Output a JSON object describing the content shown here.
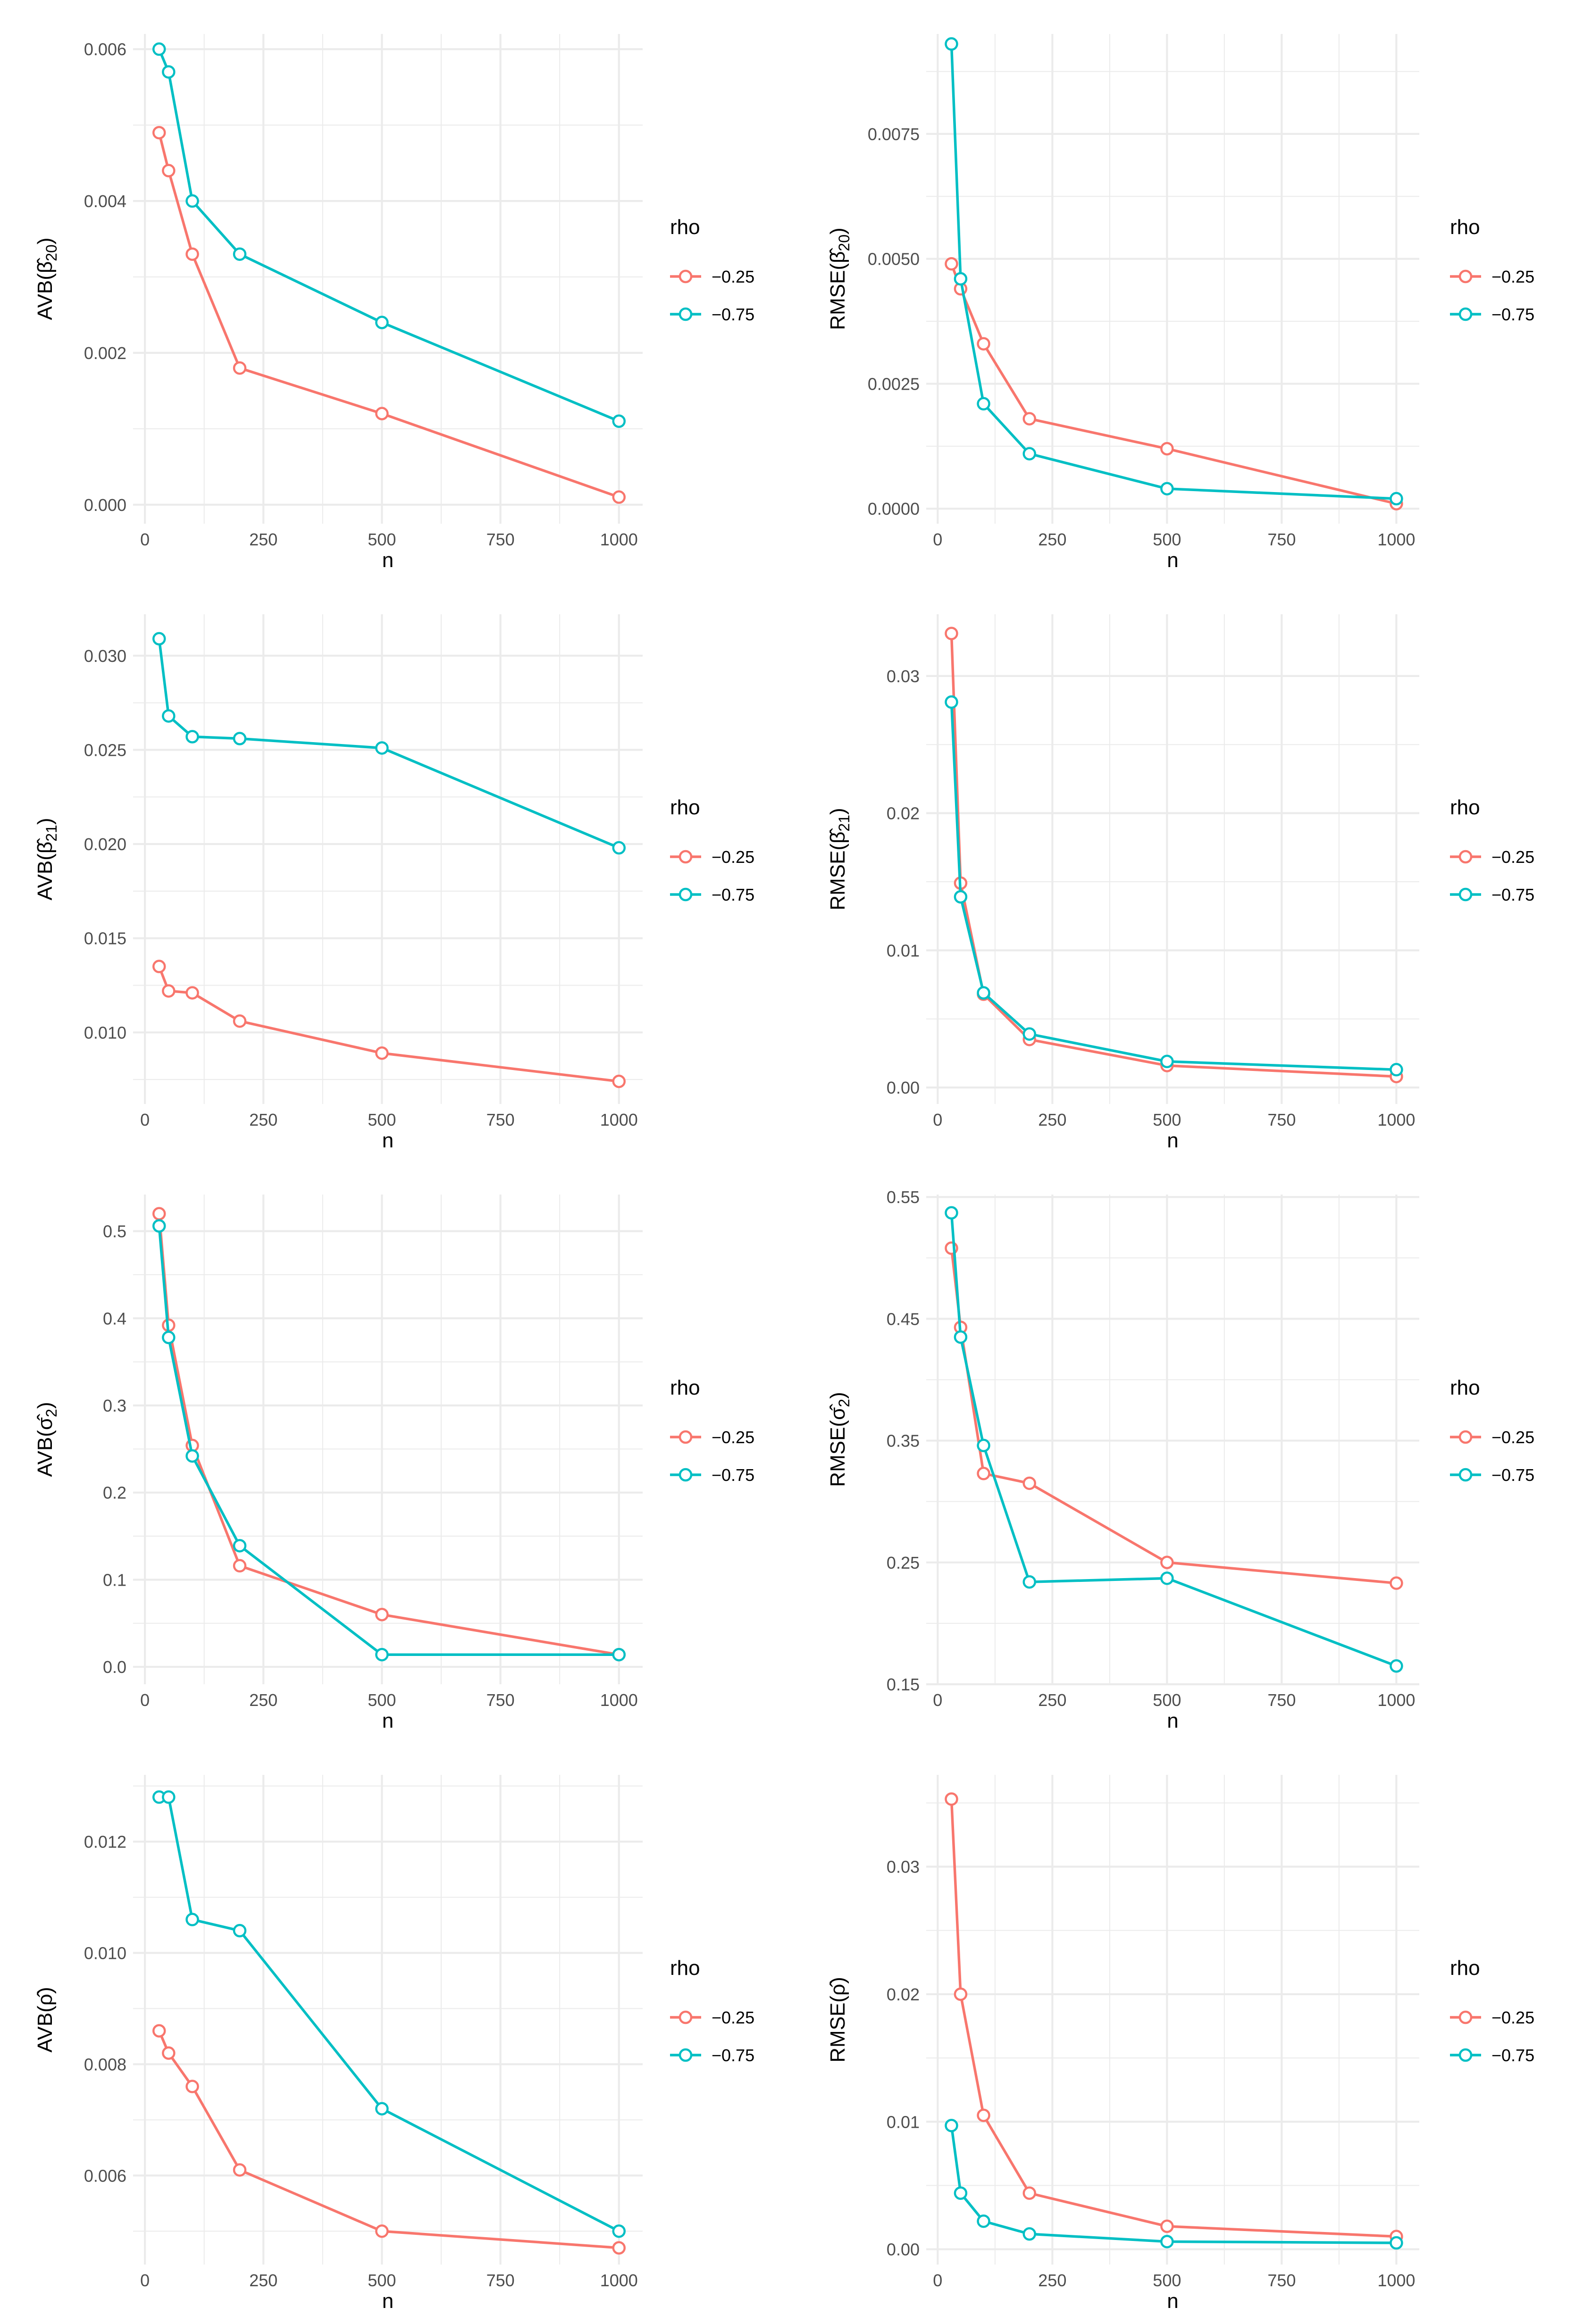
{
  "figure": {
    "legend_title": "rho",
    "colors": {
      "-0.25": "#F8766D",
      "-0.75": "#00BFC4"
    }
  },
  "chart_data": [
    {
      "id": "avb-beta20",
      "type": "line",
      "title": "",
      "xlabel": "n",
      "ylabel": "AVB(β̂20)",
      "ylabel_main": "AVB(",
      "ylabel_sym": "β̂",
      "ylabel_sub": "20",
      "ylabel_close": ")",
      "xlim": [
        -25,
        1050
      ],
      "ylim": [
        -0.00025,
        0.0062
      ],
      "xticks": [
        0,
        250,
        500,
        750,
        1000
      ],
      "xtick_labels": [
        "0",
        "250",
        "500",
        "750",
        "1000"
      ],
      "yticks": [
        0,
        0.002,
        0.004,
        0.006
      ],
      "ytick_labels": [
        "0.000",
        "0.002",
        "0.004",
        "0.006"
      ],
      "legend": {
        "title": "rho",
        "entries": [
          "−0.25",
          "−0.75"
        ]
      },
      "series": [
        {
          "name": "-0.25",
          "x": [
            30,
            50,
            100,
            200,
            500,
            1000
          ],
          "y": [
            0.0049,
            0.0044,
            0.0033,
            0.0018,
            0.0012,
            0.0001
          ]
        },
        {
          "name": "-0.75",
          "x": [
            30,
            50,
            100,
            200,
            500,
            1000
          ],
          "y": [
            0.006,
            0.0057,
            0.004,
            0.0033,
            0.0024,
            0.0011
          ]
        }
      ]
    },
    {
      "id": "rmse-beta20",
      "type": "line",
      "title": "",
      "xlabel": "n",
      "ylabel": "RMSE(β̂20)",
      "ylabel_main": "RMSE(",
      "ylabel_sym": "β̂",
      "ylabel_sub": "20",
      "ylabel_close": ")",
      "xlim": [
        -25,
        1050
      ],
      "ylim": [
        -0.0003,
        0.0095
      ],
      "xticks": [
        0,
        250,
        500,
        750,
        1000
      ],
      "xtick_labels": [
        "0",
        "250",
        "500",
        "750",
        "1000"
      ],
      "yticks": [
        0,
        0.0025,
        0.005,
        0.0075
      ],
      "ytick_labels": [
        "0.0000",
        "0.0025",
        "0.0050",
        "0.0075"
      ],
      "legend": {
        "title": "rho",
        "entries": [
          "−0.25",
          "−0.75"
        ]
      },
      "series": [
        {
          "name": "-0.25",
          "x": [
            30,
            50,
            100,
            200,
            500,
            1000
          ],
          "y": [
            0.0049,
            0.0044,
            0.0033,
            0.0018,
            0.0012,
            0.0001
          ]
        },
        {
          "name": "-0.75",
          "x": [
            30,
            50,
            100,
            200,
            500,
            1000
          ],
          "y": [
            0.0093,
            0.0046,
            0.0021,
            0.0011,
            0.0004,
            0.0002
          ]
        }
      ]
    },
    {
      "id": "avb-beta21",
      "type": "line",
      "title": "",
      "xlabel": "n",
      "ylabel": "AVB(β̂21)",
      "ylabel_main": "AVB(",
      "ylabel_sym": "β̂",
      "ylabel_sub": "21",
      "ylabel_close": ")",
      "xlim": [
        -25,
        1050
      ],
      "ylim": [
        0.0062,
        0.0322
      ],
      "xticks": [
        0,
        250,
        500,
        750,
        1000
      ],
      "xtick_labels": [
        "0",
        "250",
        "500",
        "750",
        "1000"
      ],
      "yticks": [
        0.01,
        0.015,
        0.02,
        0.025,
        0.03
      ],
      "ytick_labels": [
        "0.010",
        "0.015",
        "0.020",
        "0.025",
        "0.030"
      ],
      "legend": {
        "title": "rho",
        "entries": [
          "−0.25",
          "−0.75"
        ]
      },
      "series": [
        {
          "name": "-0.25",
          "x": [
            30,
            50,
            100,
            200,
            500,
            1000
          ],
          "y": [
            0.0135,
            0.0122,
            0.0121,
            0.0106,
            0.0089,
            0.0074
          ]
        },
        {
          "name": "-0.75",
          "x": [
            30,
            50,
            100,
            200,
            500,
            1000
          ],
          "y": [
            0.0309,
            0.0268,
            0.0257,
            0.0256,
            0.0251,
            0.0198
          ]
        }
      ]
    },
    {
      "id": "rmse-beta21",
      "type": "line",
      "title": "",
      "xlabel": "n",
      "ylabel": "RMSE(β̂21)",
      "ylabel_main": "RMSE(",
      "ylabel_sym": "β̂",
      "ylabel_sub": "21",
      "ylabel_close": ")",
      "xlim": [
        -25,
        1050
      ],
      "ylim": [
        -0.0012,
        0.0345
      ],
      "xticks": [
        0,
        250,
        500,
        750,
        1000
      ],
      "xtick_labels": [
        "0",
        "250",
        "500",
        "750",
        "1000"
      ],
      "yticks": [
        0,
        0.01,
        0.02,
        0.03
      ],
      "ytick_labels": [
        "0.00",
        "0.01",
        "0.02",
        "0.03"
      ],
      "legend": {
        "title": "rho",
        "entries": [
          "−0.25",
          "−0.75"
        ]
      },
      "series": [
        {
          "name": "-0.25",
          "x": [
            30,
            50,
            100,
            200,
            500,
            1000
          ],
          "y": [
            0.0331,
            0.0149,
            0.0068,
            0.0035,
            0.0016,
            0.0008
          ]
        },
        {
          "name": "-0.75",
          "x": [
            30,
            50,
            100,
            200,
            500,
            1000
          ],
          "y": [
            0.0281,
            0.0139,
            0.0069,
            0.0039,
            0.0019,
            0.0013
          ]
        }
      ]
    },
    {
      "id": "avb-sigma2",
      "type": "line",
      "title": "",
      "xlabel": "n",
      "ylabel": "AVB(σ̂2)",
      "ylabel_main": "AVB(",
      "ylabel_sym": "σ̂",
      "ylabel_sub": "2",
      "ylabel_close": ")",
      "xlim": [
        -25,
        1050
      ],
      "ylim": [
        -0.02,
        0.542
      ],
      "xticks": [
        0,
        250,
        500,
        750,
        1000
      ],
      "xtick_labels": [
        "0",
        "250",
        "500",
        "750",
        "1000"
      ],
      "yticks": [
        0,
        0.1,
        0.2,
        0.3,
        0.4,
        0.5
      ],
      "ytick_labels": [
        "0.0",
        "0.1",
        "0.2",
        "0.3",
        "0.4",
        "0.5"
      ],
      "legend": {
        "title": "rho",
        "entries": [
          "−0.25",
          "−0.75"
        ]
      },
      "series": [
        {
          "name": "-0.25",
          "x": [
            30,
            50,
            100,
            200,
            500,
            1000
          ],
          "y": [
            0.52,
            0.392,
            0.254,
            0.116,
            0.06,
            0.014
          ]
        },
        {
          "name": "-0.75",
          "x": [
            30,
            50,
            100,
            200,
            500,
            1000
          ],
          "y": [
            0.506,
            0.378,
            0.242,
            0.139,
            0.014,
            0.014
          ]
        }
      ]
    },
    {
      "id": "rmse-sigma2",
      "type": "line",
      "title": "",
      "xlabel": "n",
      "ylabel": "RMSE(σ̂2)",
      "ylabel_main": "RMSE(",
      "ylabel_sym": "σ̂",
      "ylabel_sub": "2",
      "ylabel_close": ")",
      "xlim": [
        -25,
        1050
      ],
      "ylim": [
        0.15,
        0.552
      ],
      "xticks": [
        0,
        250,
        500,
        750,
        1000
      ],
      "xtick_labels": [
        "0",
        "250",
        "500",
        "750",
        "1000"
      ],
      "yticks": [
        0.15,
        0.25,
        0.35,
        0.45,
        0.55
      ],
      "ytick_labels": [
        "0.15",
        "0.25",
        "0.35",
        "0.45",
        "0.55"
      ],
      "legend": {
        "title": "rho",
        "entries": [
          "−0.25",
          "−0.75"
        ]
      },
      "series": [
        {
          "name": "-0.25",
          "x": [
            30,
            50,
            100,
            200,
            500,
            1000
          ],
          "y": [
            0.508,
            0.443,
            0.323,
            0.315,
            0.25,
            0.233
          ]
        },
        {
          "name": "-0.75",
          "x": [
            30,
            50,
            100,
            200,
            500,
            1000
          ],
          "y": [
            0.537,
            0.435,
            0.346,
            0.234,
            0.237,
            0.165
          ]
        }
      ]
    },
    {
      "id": "avb-rho",
      "type": "line",
      "title": "",
      "xlabel": "n",
      "ylabel": "AVB(ρ̂)",
      "ylabel_main": "AVB(",
      "ylabel_sym": "ρ̂",
      "ylabel_sub": "",
      "ylabel_close": ")",
      "xlim": [
        -25,
        1050
      ],
      "ylim": [
        0.0044,
        0.0132
      ],
      "xticks": [
        0,
        250,
        500,
        750,
        1000
      ],
      "xtick_labels": [
        "0",
        "250",
        "500",
        "750",
        "1000"
      ],
      "yticks": [
        0.006,
        0.008,
        0.01,
        0.012
      ],
      "ytick_labels": [
        "0.006",
        "0.008",
        "0.010",
        "0.012"
      ],
      "legend": {
        "title": "rho",
        "entries": [
          "−0.25",
          "−0.75"
        ]
      },
      "series": [
        {
          "name": "-0.25",
          "x": [
            30,
            50,
            100,
            200,
            500,
            1000
          ],
          "y": [
            0.0086,
            0.0082,
            0.0076,
            0.0061,
            0.005,
            0.0047
          ]
        },
        {
          "name": "-0.75",
          "x": [
            30,
            50,
            100,
            200,
            500,
            1000
          ],
          "y": [
            0.0128,
            0.0128,
            0.0106,
            0.0104,
            0.0072,
            0.005
          ]
        }
      ]
    },
    {
      "id": "rmse-rho",
      "type": "line",
      "title": "",
      "xlabel": "n",
      "ylabel": "RMSE(ρ̂)",
      "ylabel_main": "RMSE(",
      "ylabel_sym": "ρ̂",
      "ylabel_sub": "",
      "ylabel_close": ")",
      "xlim": [
        -25,
        1050
      ],
      "ylim": [
        -0.0012,
        0.0372
      ],
      "xticks": [
        0,
        250,
        500,
        750,
        1000
      ],
      "xtick_labels": [
        "0",
        "250",
        "500",
        "750",
        "1000"
      ],
      "yticks": [
        0,
        0.01,
        0.02,
        0.03
      ],
      "ytick_labels": [
        "0.00",
        "0.01",
        "0.02",
        "0.03"
      ],
      "legend": {
        "title": "rho",
        "entries": [
          "−0.25",
          "−0.75"
        ]
      },
      "series": [
        {
          "name": "-0.25",
          "x": [
            30,
            50,
            100,
            200,
            500,
            1000
          ],
          "y": [
            0.0353,
            0.02,
            0.0105,
            0.0044,
            0.0018,
            0.001
          ]
        },
        {
          "name": "-0.75",
          "x": [
            30,
            50,
            100,
            200,
            500,
            1000
          ],
          "y": [
            0.0097,
            0.0044,
            0.0022,
            0.0012,
            0.0006,
            0.0005
          ]
        }
      ]
    }
  ]
}
